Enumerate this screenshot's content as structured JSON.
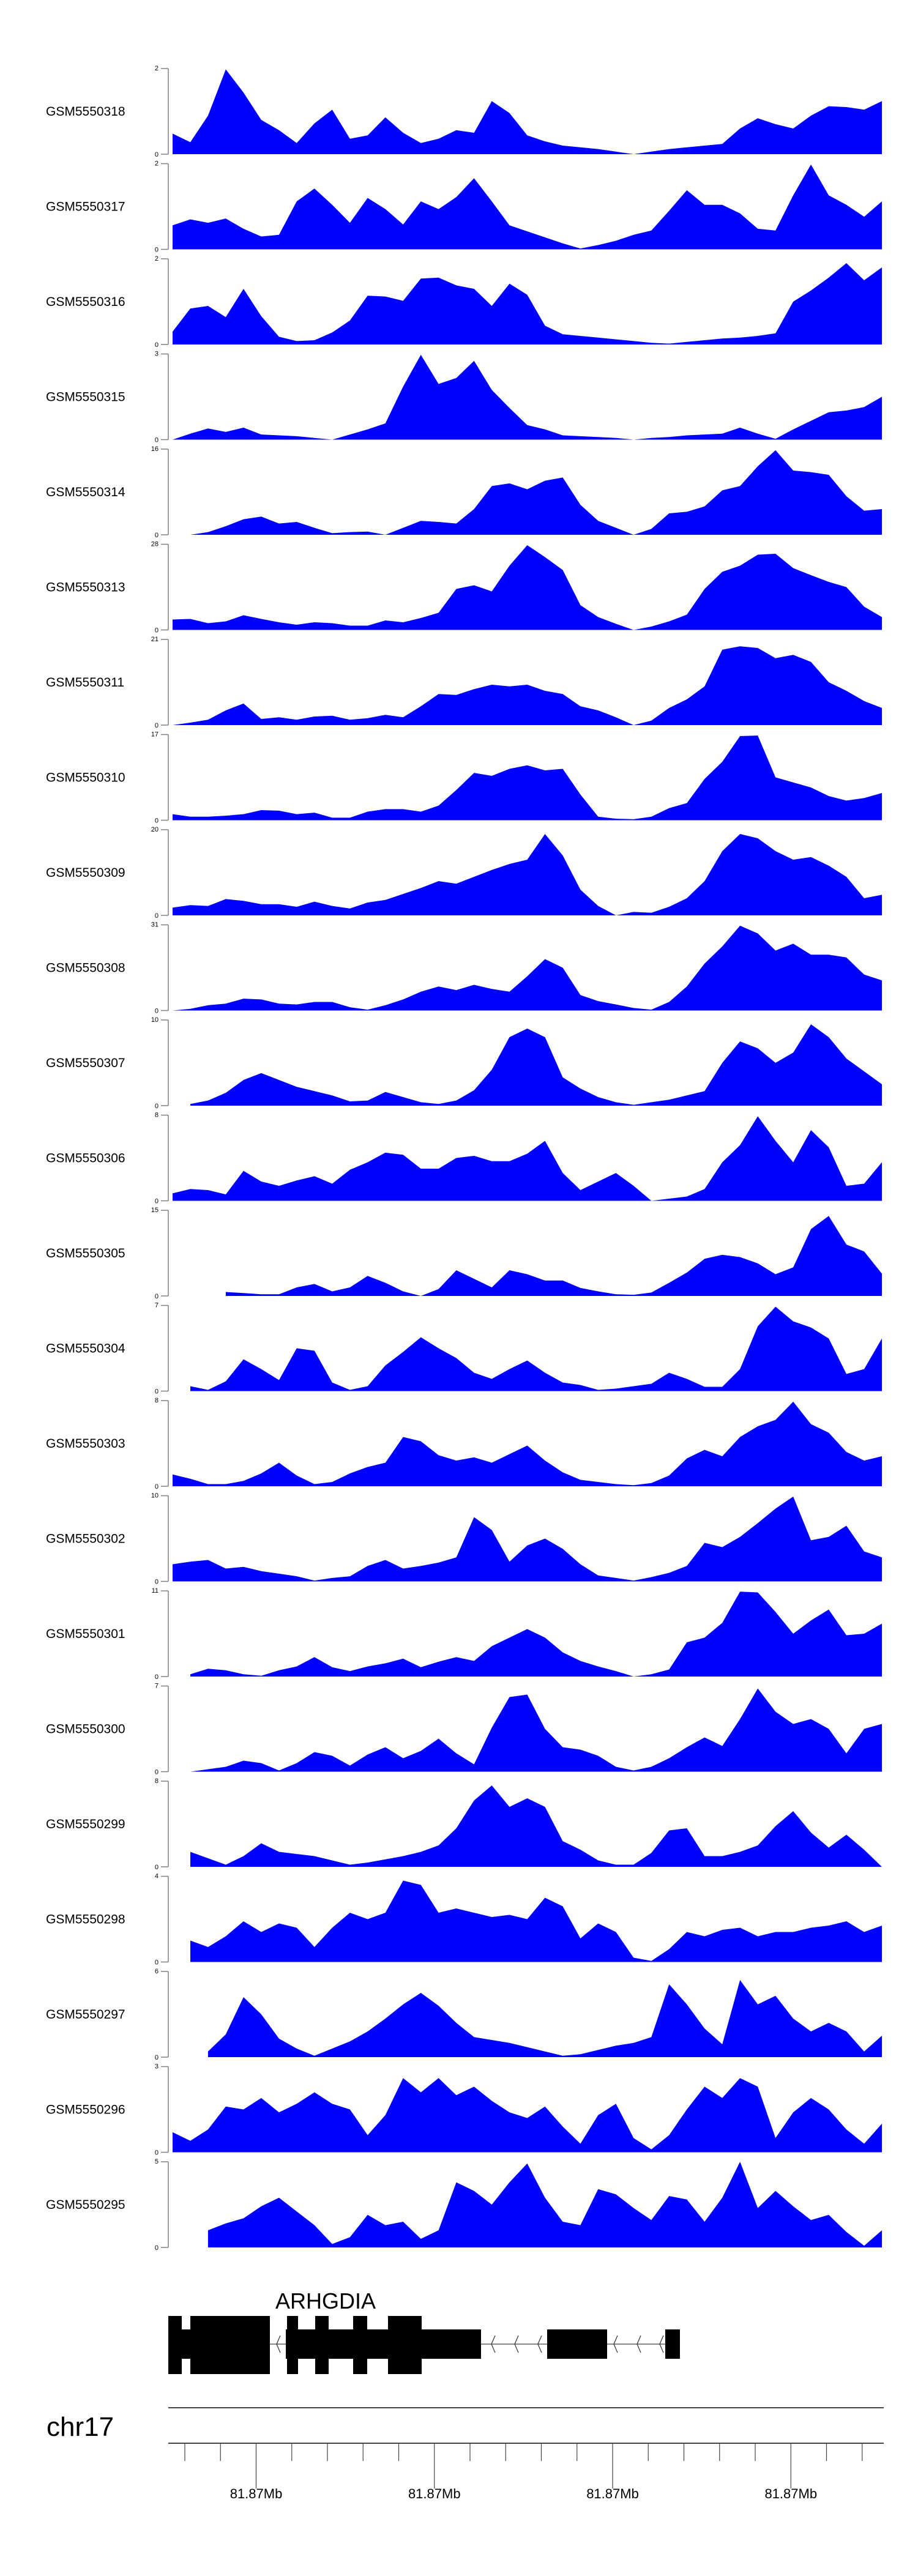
{
  "chart_data": {
    "type": "area",
    "title": "",
    "fill_color": "#0000FF",
    "axis_color": "#808080",
    "tracks": [
      {
        "name": "GSM5550318",
        "ylim": [
          0,
          2
        ],
        "tick_labels": [
          "0",
          "2"
        ],
        "values": [
          0.48,
          0.28,
          0.9,
          1.98,
          1.44,
          0.8,
          0.56,
          0.26,
          0.72,
          1.04,
          0.36,
          0.44,
          0.86,
          0.5,
          0.26,
          0.36,
          0.56,
          0.5,
          1.24,
          0.96,
          0.44,
          0.3,
          0.2,
          0.16,
          0.12,
          0.06,
          0,
          0.06,
          0.12,
          0.16,
          0.2,
          0.24,
          0.6,
          0.84,
          0.7,
          0.6,
          0.9,
          1.12,
          1.1,
          1.04,
          1.24
        ]
      },
      {
        "name": "GSM5550317",
        "ylim": [
          0,
          2
        ],
        "tick_labels": [
          "0",
          "2"
        ],
        "values": [
          0.56,
          0.7,
          0.62,
          0.72,
          0.48,
          0.3,
          0.34,
          1.12,
          1.42,
          1.04,
          0.62,
          1.2,
          0.94,
          0.58,
          1.12,
          0.94,
          1.22,
          1.66,
          1.12,
          0.56,
          0.42,
          0.28,
          0.14,
          0.02,
          0.1,
          0.2,
          0.34,
          0.44,
          0.9,
          1.38,
          1.04,
          1.04,
          0.84,
          0.48,
          0.44,
          1.26,
          1.98,
          1.26,
          1.04,
          0.76,
          1.12
        ]
      },
      {
        "name": "GSM5550316",
        "ylim": [
          0,
          2
        ],
        "tick_labels": [
          "0",
          "2"
        ],
        "values": [
          0.3,
          0.84,
          0.9,
          0.64,
          1.3,
          0.66,
          0.18,
          0.08,
          0.1,
          0.28,
          0.56,
          1.14,
          1.12,
          1.02,
          1.54,
          1.56,
          1.38,
          1.3,
          0.9,
          1.42,
          1.16,
          0.44,
          0.24,
          0.2,
          0.16,
          0.12,
          0.08,
          0.04,
          0.02,
          0.06,
          0.1,
          0.14,
          0.16,
          0.2,
          0.26,
          1.0,
          1.26,
          1.56,
          1.9,
          1.5,
          1.8
        ]
      },
      {
        "name": "GSM5550315",
        "ylim": [
          0,
          3
        ],
        "tick_labels": [
          "0",
          "3"
        ],
        "values": [
          0,
          0.21,
          0.39,
          0.27,
          0.42,
          0.18,
          0.15,
          0.12,
          0.06,
          0,
          0.18,
          0.36,
          0.57,
          1.86,
          2.97,
          1.95,
          2.16,
          2.76,
          1.74,
          1.11,
          0.51,
          0.36,
          0.15,
          0.12,
          0.09,
          0.06,
          0,
          0.06,
          0.09,
          0.15,
          0.18,
          0.21,
          0.42,
          0.21,
          0.03,
          0.36,
          0.66,
          0.96,
          1.02,
          1.14,
          1.5
        ]
      },
      {
        "name": "GSM5550314",
        "ylim": [
          0,
          16
        ],
        "tick_labels": [
          "0",
          "16"
        ],
        "values": [
          null,
          0,
          0.5,
          1.6,
          2.9,
          3.4,
          2.1,
          2.4,
          1.3,
          0.3,
          0.5,
          0.6,
          0,
          1.3,
          2.6,
          2.4,
          2.1,
          4.8,
          9.1,
          9.6,
          8.5,
          10.1,
          10.7,
          5.6,
          2.6,
          1.3,
          0,
          1.1,
          4.0,
          4.3,
          5.3,
          8.3,
          9.1,
          12.8,
          15.8,
          12.0,
          11.7,
          11.2,
          7.2,
          4.5,
          4.8
        ]
      },
      {
        "name": "GSM5550313",
        "ylim": [
          0,
          28
        ],
        "tick_labels": [
          "0",
          "28"
        ],
        "values": [
          3.4,
          3.6,
          2.2,
          2.8,
          4.8,
          3.6,
          2.5,
          1.7,
          2.5,
          2.2,
          1.4,
          1.4,
          3.1,
          2.5,
          3.9,
          5.6,
          13.4,
          14.6,
          12.6,
          21,
          27.7,
          23.8,
          19.6,
          8.1,
          4.2,
          2.0,
          0,
          1.1,
          2.8,
          5.0,
          13.4,
          19.0,
          21.0,
          24.6,
          24.9,
          20.2,
          17.9,
          15.7,
          14.0,
          7.6,
          4.2
        ]
      },
      {
        "name": "GSM5550311",
        "ylim": [
          0,
          21
        ],
        "tick_labels": [
          "0",
          "21"
        ],
        "values": [
          0,
          0.6,
          1.3,
          3.6,
          5.3,
          1.5,
          1.9,
          1.3,
          2.1,
          2.3,
          1.3,
          1.7,
          2.5,
          1.9,
          4.6,
          7.6,
          7.4,
          8.8,
          9.9,
          9.5,
          9.9,
          8.4,
          7.6,
          4.6,
          3.6,
          1.9,
          0,
          1.1,
          4.2,
          6.3,
          9.5,
          18.5,
          19.3,
          18.9,
          16.4,
          17.2,
          15.5,
          10.5,
          8.4,
          5.9,
          4.2
        ]
      },
      {
        "name": "GSM5550310",
        "ylim": [
          0,
          17
        ],
        "tick_labels": [
          "0",
          "17"
        ],
        "values": [
          1.2,
          0.7,
          0.7,
          0.9,
          1.2,
          2.0,
          1.9,
          1.2,
          1.5,
          0.5,
          0.5,
          1.7,
          2.2,
          2.2,
          1.7,
          2.9,
          6.0,
          9.4,
          8.8,
          10.2,
          10.9,
          9.9,
          10.2,
          5.1,
          0.7,
          0.3,
          0.2,
          0.7,
          2.4,
          3.4,
          8.2,
          11.6,
          16.7,
          16.8,
          8.5,
          7.5,
          6.5,
          4.8,
          3.9,
          4.4,
          5.4
        ]
      },
      {
        "name": "GSM5550309",
        "ylim": [
          0,
          20
        ],
        "tick_labels": [
          "0",
          "20"
        ],
        "values": [
          1.8,
          2.4,
          2.2,
          3.8,
          3.4,
          2.6,
          2.6,
          2.0,
          3.2,
          2.2,
          1.6,
          3.0,
          3.6,
          5.0,
          6.4,
          8.0,
          7.4,
          9.0,
          10.6,
          12.0,
          13.0,
          19.0,
          14.0,
          6.0,
          2.2,
          0,
          0.8,
          0.6,
          2.0,
          4.0,
          8.0,
          15.0,
          19.0,
          18.0,
          15.0,
          13.0,
          13.6,
          11.6,
          9.0,
          4.0,
          4.8
        ]
      },
      {
        "name": "GSM5550308",
        "ylim": [
          0,
          31
        ],
        "tick_labels": [
          "0",
          "31"
        ],
        "values": [
          0,
          0.6,
          1.9,
          2.5,
          4.3,
          4.0,
          2.5,
          2.2,
          3.1,
          3.1,
          1.2,
          0.3,
          1.9,
          4.0,
          6.8,
          8.7,
          7.4,
          9.3,
          7.8,
          6.8,
          12.4,
          18.6,
          15.5,
          5.6,
          3.4,
          2.2,
          0.9,
          0.3,
          3.1,
          8.7,
          17.0,
          23.2,
          30.7,
          27.9,
          21.7,
          24.2,
          20.2,
          20.2,
          19.2,
          13.0,
          10.9
        ]
      },
      {
        "name": "GSM5550307",
        "ylim": [
          0,
          10
        ],
        "tick_labels": [
          "0",
          "10"
        ],
        "values": [
          null,
          0.2,
          0.6,
          1.5,
          3.0,
          3.8,
          3.0,
          2.2,
          1.7,
          1.2,
          0.5,
          0.6,
          1.6,
          1.0,
          0.4,
          0.2,
          0.6,
          1.8,
          4.2,
          8.0,
          9.0,
          8.0,
          3.3,
          2.0,
          1.0,
          0.4,
          0.1,
          0.4,
          0.7,
          1.2,
          1.7,
          5.0,
          7.5,
          6.7,
          5.0,
          6.2,
          9.5,
          8.0,
          5.5,
          4.0,
          2.5
        ]
      },
      {
        "name": "GSM5550306",
        "ylim": [
          0,
          8
        ],
        "tick_labels": [
          "0",
          "8"
        ],
        "values": [
          0.7,
          1.1,
          1.0,
          0.6,
          2.8,
          1.8,
          1.4,
          1.9,
          2.3,
          1.6,
          2.9,
          3.6,
          4.5,
          4.3,
          3.0,
          3.0,
          4.0,
          4.2,
          3.7,
          3.7,
          4.4,
          5.6,
          2.6,
          1.0,
          1.8,
          2.6,
          1.4,
          0,
          0.2,
          0.4,
          1.1,
          3.6,
          5.2,
          7.9,
          5.6,
          3.6,
          6.6,
          5.0,
          1.4,
          1.6,
          3.6
        ]
      },
      {
        "name": "GSM5550305",
        "ylim": [
          0,
          15
        ],
        "tick_labels": [
          "0",
          "15"
        ],
        "values": [
          null,
          null,
          null,
          0.7,
          0.5,
          0.3,
          0.3,
          1.5,
          2.1,
          0.8,
          1.5,
          3.5,
          2.3,
          0.8,
          0,
          1.2,
          4.5,
          3.0,
          1.5,
          4.5,
          3.8,
          2.7,
          2.7,
          1.4,
          0.8,
          0.3,
          0.2,
          0.6,
          2.3,
          4.1,
          6.5,
          7.2,
          6.8,
          5.7,
          3.8,
          5.0,
          11.7,
          14.0,
          9.0,
          7.8,
          3.9
        ]
      },
      {
        "name": "GSM5550304",
        "ylim": [
          0,
          7
        ],
        "tick_labels": [
          "0",
          "7"
        ],
        "values": [
          null,
          0.4,
          0.1,
          0.8,
          2.6,
          1.8,
          0.9,
          3.5,
          3.3,
          0.7,
          0.1,
          0.4,
          2.1,
          3.2,
          4.4,
          3.5,
          2.7,
          1.5,
          1.0,
          1.8,
          2.5,
          1.5,
          0.7,
          0.5,
          0.1,
          0.2,
          0.4,
          0.6,
          1.5,
          1.0,
          0.35,
          0.35,
          1.8,
          5.3,
          6.9,
          5.7,
          5.2,
          4.3,
          1.4,
          1.8,
          4.3
        ]
      },
      {
        "name": "GSM5550303",
        "ylim": [
          0,
          8
        ],
        "tick_labels": [
          "0",
          "8"
        ],
        "values": [
          1.1,
          0.7,
          0.2,
          0.2,
          0.5,
          1.2,
          2.2,
          1.0,
          0.2,
          0.4,
          1.2,
          1.8,
          2.2,
          4.6,
          4.2,
          2.9,
          2.4,
          2.7,
          2.2,
          3.0,
          3.8,
          2.4,
          1.3,
          0.6,
          0.4,
          0.2,
          0.1,
          0.3,
          1.0,
          2.6,
          3.4,
          2.8,
          4.6,
          5.6,
          6.2,
          7.9,
          5.8,
          5.0,
          3.2,
          2.4,
          2.8
        ]
      },
      {
        "name": "GSM5550302",
        "ylim": [
          0,
          10
        ],
        "tick_labels": [
          "0",
          "10"
        ],
        "values": [
          2.0,
          2.3,
          2.5,
          1.5,
          1.7,
          1.2,
          0.9,
          0.6,
          0.1,
          0.4,
          0.6,
          1.8,
          2.5,
          1.5,
          1.8,
          2.2,
          2.8,
          7.5,
          6.0,
          2.3,
          4.2,
          5.0,
          3.8,
          2.0,
          0.7,
          0.4,
          0.1,
          0.5,
          1.0,
          1.8,
          4.5,
          4.0,
          5.2,
          6.8,
          8.5,
          9.9,
          4.8,
          5.2,
          6.5,
          3.5,
          2.8
        ]
      },
      {
        "name": "GSM5550301",
        "ylim": [
          0,
          11
        ],
        "tick_labels": [
          "0",
          "11"
        ],
        "values": [
          null,
          0.3,
          1.0,
          0.8,
          0.3,
          0.1,
          0.8,
          1.3,
          2.5,
          1.2,
          0.7,
          1.3,
          1.7,
          2.3,
          1.2,
          1.9,
          2.5,
          2.0,
          3.9,
          5.0,
          6.1,
          5.0,
          3.1,
          2.0,
          1.3,
          0.7,
          0,
          0.3,
          0.9,
          4.4,
          5.0,
          6.9,
          10.9,
          10.8,
          8.3,
          5.5,
          7.2,
          8.6,
          5.3,
          5.5,
          6.8
        ]
      },
      {
        "name": "GSM5550300",
        "ylim": [
          0,
          7
        ],
        "tick_labels": [
          "0",
          "7"
        ],
        "values": [
          null,
          0,
          0.2,
          0.4,
          0.9,
          0.7,
          0.1,
          0.7,
          1.6,
          1.3,
          0.5,
          1.4,
          2.0,
          1.1,
          1.7,
          2.7,
          1.5,
          0.6,
          3.6,
          6.1,
          6.3,
          3.5,
          2.0,
          1.8,
          1.3,
          0.4,
          0.1,
          0.4,
          1.1,
          2.0,
          2.8,
          2.1,
          4.3,
          6.8,
          4.9,
          3.9,
          4.3,
          3.5,
          1.5,
          3.5,
          3.9
        ]
      },
      {
        "name": "GSM5550299",
        "ylim": [
          0,
          8
        ],
        "tick_labels": [
          "0",
          "8"
        ],
        "values": [
          null,
          1.4,
          0.8,
          0.2,
          1.0,
          2.2,
          1.4,
          1.2,
          1.0,
          0.6,
          0.2,
          0.4,
          0.7,
          1.0,
          1.4,
          2.0,
          3.6,
          6.2,
          7.6,
          5.6,
          6.4,
          5.6,
          2.4,
          1.6,
          0.6,
          0.2,
          0.2,
          1.3,
          3.4,
          3.6,
          1.0,
          1.0,
          1.4,
          2.0,
          3.8,
          5.2,
          3.2,
          1.8,
          3.0,
          1.6,
          0
        ]
      },
      {
        "name": "GSM5550298",
        "ylim": [
          0,
          4
        ],
        "tick_labels": [
          "0",
          "4"
        ],
        "values": [
          null,
          1.0,
          0.7,
          1.2,
          1.9,
          1.4,
          1.8,
          1.6,
          0.7,
          1.6,
          2.3,
          2.0,
          2.3,
          3.8,
          3.6,
          2.3,
          2.5,
          2.3,
          2.1,
          2.2,
          2.0,
          3.0,
          2.6,
          1.1,
          1.8,
          1.4,
          0.2,
          0.05,
          0.6,
          1.4,
          1.2,
          1.5,
          1.6,
          1.2,
          1.4,
          1.4,
          1.6,
          1.7,
          1.9,
          1.4,
          1.7
        ]
      },
      {
        "name": "GSM5550297",
        "ylim": [
          0,
          6
        ],
        "tick_labels": [
          "0",
          "6"
        ],
        "values": [
          null,
          null,
          0.4,
          1.6,
          4.2,
          3.0,
          1.3,
          0.6,
          0.1,
          0.6,
          1.1,
          1.8,
          2.7,
          3.7,
          4.5,
          3.6,
          2.4,
          1.4,
          1.2,
          1.0,
          0.7,
          0.4,
          0.1,
          0.2,
          0.5,
          0.8,
          1.0,
          1.4,
          5.1,
          3.7,
          2.0,
          0.9,
          5.4,
          3.7,
          4.3,
          2.7,
          1.8,
          2.4,
          1.8,
          0.4,
          1.5
        ]
      },
      {
        "name": "GSM5550296",
        "ylim": [
          0,
          3
        ],
        "tick_labels": [
          "0",
          "3"
        ],
        "values": [
          0.7,
          0.4,
          0.8,
          1.6,
          1.5,
          1.9,
          1.4,
          1.7,
          2.1,
          1.7,
          1.5,
          0.6,
          1.3,
          2.6,
          2.1,
          2.6,
          2.0,
          2.3,
          1.8,
          1.4,
          1.2,
          1.6,
          0.9,
          0.3,
          1.3,
          1.7,
          0.5,
          0.1,
          0.6,
          1.5,
          2.3,
          1.9,
          2.6,
          2.3,
          0.5,
          1.4,
          1.9,
          1.5,
          0.8,
          0.3,
          1.0
        ]
      },
      {
        "name": "GSM5550295",
        "ylim": [
          0,
          5
        ],
        "tick_labels": [
          "0",
          "5"
        ],
        "values": [
          null,
          null,
          1.0,
          1.4,
          1.7,
          2.4,
          2.9,
          2.1,
          1.3,
          0.2,
          0.6,
          1.9,
          1.3,
          1.5,
          0.5,
          1.0,
          3.8,
          3.3,
          2.5,
          3.8,
          4.9,
          2.9,
          1.5,
          1.3,
          3.4,
          3.1,
          2.3,
          1.6,
          3.0,
          2.8,
          1.5,
          2.9,
          5.0,
          2.3,
          3.3,
          2.4,
          1.6,
          1.9,
          0.9,
          0.1,
          1.0
        ]
      }
    ],
    "gene": {
      "name": "ARHGDIA",
      "strand": "-",
      "color": "#000000"
    },
    "axis": {
      "chromosome": "chr17",
      "tick_labels": [
        "81.87Mb",
        "81.87Mb",
        "81.87Mb",
        "81.87Mb"
      ]
    }
  }
}
